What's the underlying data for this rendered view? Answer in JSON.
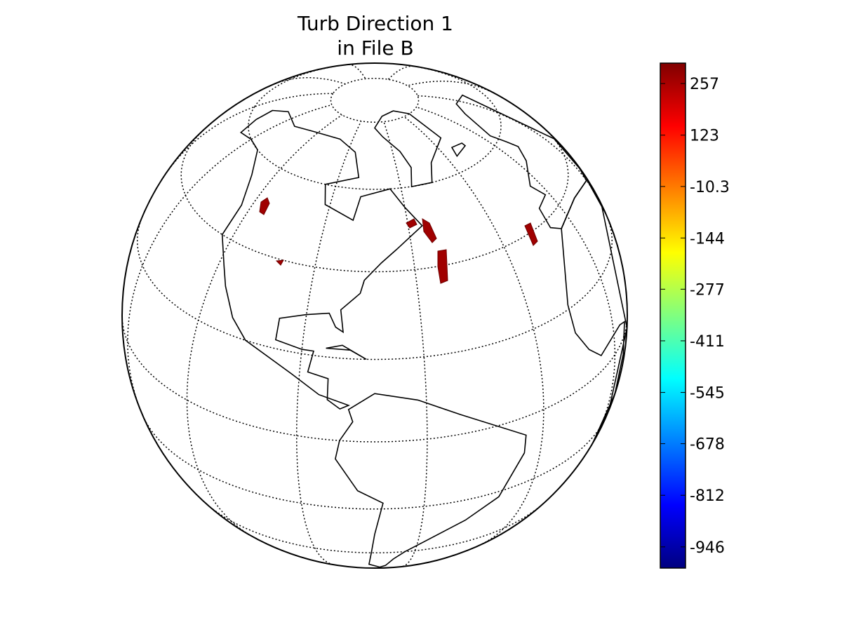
{
  "map": {
    "title": [
      "Turb Direction 1",
      "in File B"
    ],
    "colorbar": {
      "colormap": "jet",
      "lim": [
        -1001,
        310
      ],
      "ticks": [
        257,
        123,
        -10.3,
        -144,
        -277,
        -411,
        -545,
        -678,
        -812,
        -946
      ]
    }
  }
}
